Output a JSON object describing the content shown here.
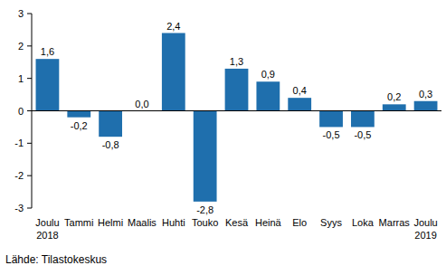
{
  "chart_data": {
    "type": "bar",
    "categories": [
      "Joulu 2018",
      "Tammi",
      "Helmi",
      "Maalis",
      "Huhti",
      "Touko",
      "Kesä",
      "Heinä",
      "Elo",
      "Syys",
      "Loka",
      "Marras",
      "Joulu 2019"
    ],
    "values": [
      1.6,
      -0.2,
      -0.8,
      0.0,
      2.4,
      -2.8,
      1.3,
      0.9,
      0.4,
      -0.5,
      -0.5,
      0.2,
      0.3
    ],
    "value_labels": [
      "1,6",
      "-0,2",
      "-0,8",
      "0,0",
      "2,4",
      "-2,8",
      "1,3",
      "0,9",
      "0,4",
      "-0,5",
      "-0,5",
      "0,2",
      "0,3"
    ],
    "color": "#1f6fad",
    "ylim": [
      -3,
      3
    ],
    "yticks": [
      -3,
      -2,
      -1,
      0,
      1,
      2,
      3
    ],
    "grid": false,
    "data_labels": true,
    "annotations": [
      "Lähde: Tilastokeskus"
    ]
  }
}
